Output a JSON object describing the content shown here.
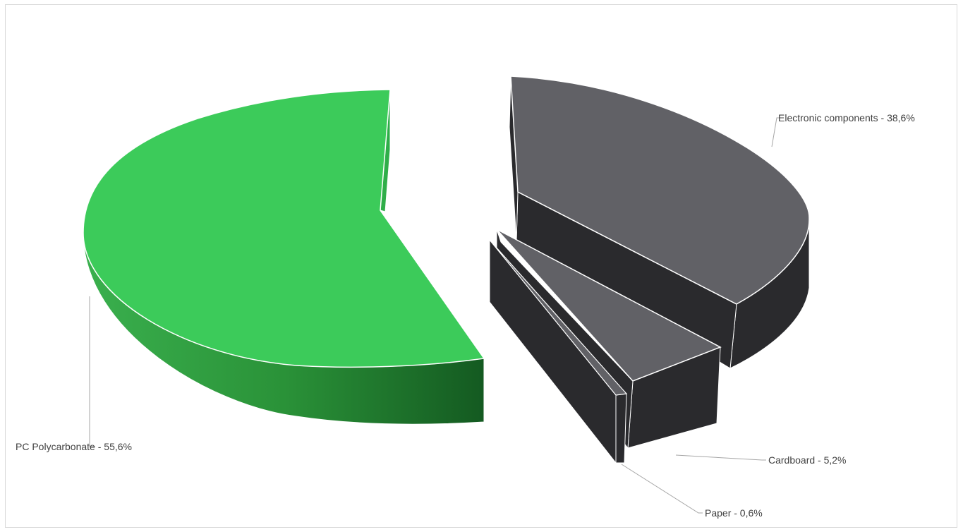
{
  "chart_data": {
    "type": "pie",
    "title": "",
    "slices": [
      {
        "label": "PC Polycarbonate",
        "value": 55.6,
        "display": "PC Polycarbonate - 55,6%",
        "color": "#3ccb5a"
      },
      {
        "label": "Electronic components",
        "value": 38.6,
        "display": "Electronic components - 38,6%",
        "color": "#616166"
      },
      {
        "label": "Cardboard",
        "value": 5.2,
        "display": "Cardboard - 5,2%",
        "color": "#616166"
      },
      {
        "label": "Paper",
        "value": 0.6,
        "display": "Paper - 0,6%",
        "color": "#616166"
      }
    ],
    "style": "3d-exploded",
    "legend": "none",
    "side_colors": {
      "green": "#2a9a3e",
      "dark": "#2a2a2d"
    }
  }
}
